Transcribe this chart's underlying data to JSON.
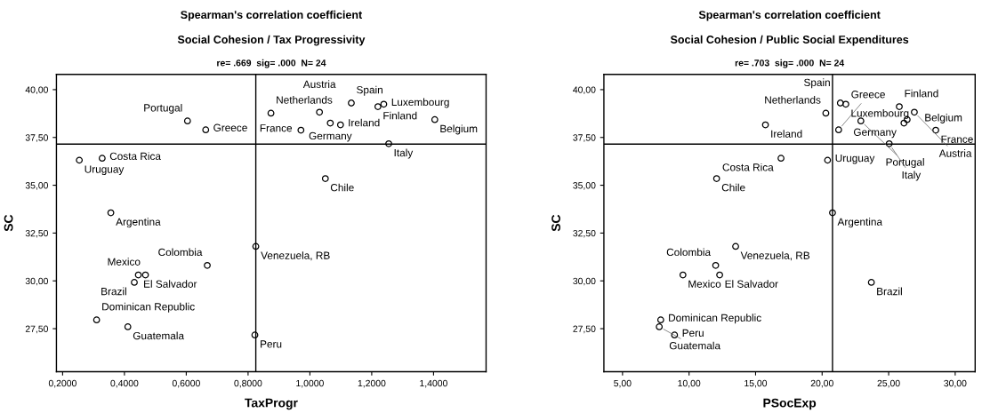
{
  "chart_data": [
    {
      "type": "scatter",
      "title": "Spearman's correlation coefficient",
      "subtitle": "Social Cohesion / Tax Progressivity",
      "xlabel": "TaxProgr",
      "ylabel": "SC",
      "marker": "circle",
      "grid": false,
      "legend": false,
      "annotations": [
        "re= .669  sig= .000  N= 24",
        {
          "text": "Uruguay",
          "x": 0.254,
          "y": 36.31
        },
        {
          "text": "Costa Rica",
          "x": 0.328,
          "y": 36.41
        },
        {
          "text": "Argentina",
          "x": 0.356,
          "y": 33.56
        },
        {
          "text": "Portugal",
          "x": 0.604,
          "y": 38.36
        },
        {
          "text": "Greece",
          "x": 0.663,
          "y": 37.9
        },
        {
          "text": "Netherlands",
          "x": 0.874,
          "y": 38.77
        },
        {
          "text": "France",
          "x": 0.971,
          "y": 37.88
        },
        {
          "text": "Austria",
          "x": 1.031,
          "y": 38.82
        },
        {
          "text": "Germany",
          "x": 1.066,
          "y": 38.25
        },
        {
          "text": "Ireland",
          "x": 1.099,
          "y": 38.16
        },
        {
          "text": "Spain",
          "x": 1.134,
          "y": 39.3
        },
        {
          "text": "Finland",
          "x": 1.22,
          "y": 39.11
        },
        {
          "text": "Luxembourg",
          "x": 1.239,
          "y": 39.24
        },
        {
          "text": "Italy",
          "x": 1.255,
          "y": 37.17
        },
        {
          "text": "Belgium",
          "x": 1.404,
          "y": 38.43
        },
        {
          "text": "Chile",
          "x": 1.05,
          "y": 35.35
        },
        {
          "text": "Venezuela, RB",
          "x": 0.825,
          "y": 31.8
        },
        {
          "text": "El Salvador",
          "x": 0.445,
          "y": 30.31
        },
        {
          "text": "Mexico",
          "x": 0.468,
          "y": 30.31
        },
        {
          "text": "Brazil",
          "x": 0.432,
          "y": 29.92
        },
        {
          "text": "Colombia",
          "x": 0.668,
          "y": 30.81
        },
        {
          "text": "Dominican Republic",
          "x": 0.31,
          "y": 27.96
        },
        {
          "text": "Guatemala",
          "x": 0.411,
          "y": 27.6
        },
        {
          "text": "Peru",
          "x": 0.822,
          "y": 27.17
        }
      ],
      "series": [
        {
          "color": "#000000",
          "x": [
            0.254,
            0.328,
            0.356,
            0.604,
            0.663,
            0.874,
            0.971,
            1.031,
            1.066,
            1.099,
            1.134,
            1.22,
            1.239,
            1.255,
            1.404,
            1.05,
            0.825,
            0.445,
            0.468,
            0.432,
            0.668,
            0.31,
            0.411,
            0.822
          ],
          "values": [
            36.31,
            36.41,
            33.56,
            38.36,
            37.9,
            38.77,
            37.88,
            38.82,
            38.25,
            38.16,
            39.3,
            39.11,
            39.24,
            37.17,
            38.43,
            35.35,
            31.8,
            30.31,
            30.31,
            29.92,
            30.81,
            27.96,
            27.6,
            27.17
          ]
        }
      ],
      "ref_lines": [
        {
          "axis": "x",
          "value": 0.825,
          "color": "#000000"
        },
        {
          "axis": "y",
          "value": 37.15,
          "color": "#000000"
        }
      ],
      "xlim": [
        0.18,
        1.57
      ],
      "ylim": [
        25.25,
        40.8
      ],
      "xticks": [
        {
          "value": 0.2,
          "label": "0,2000"
        },
        {
          "value": 0.4,
          "label": "0,4000"
        },
        {
          "value": 0.6,
          "label": "0,6000"
        },
        {
          "value": 0.8,
          "label": "0,8000"
        },
        {
          "value": 1.0,
          "label": "1,0000"
        },
        {
          "value": 1.2,
          "label": "1,2000"
        },
        {
          "value": 1.4,
          "label": "1,4000"
        }
      ],
      "yticks": [
        {
          "value": 27.5,
          "label": "27,50"
        },
        {
          "value": 30,
          "label": "30,00"
        },
        {
          "value": 32.5,
          "label": "32,50"
        },
        {
          "value": 35,
          "label": "35,00"
        },
        {
          "value": 37.5,
          "label": "37,50"
        },
        {
          "value": 40,
          "label": "40,00"
        }
      ]
    },
    {
      "type": "scatter",
      "title": "Spearman's correlation coefficient",
      "subtitle": "Social Cohesion / Public Social Expenditures",
      "xlabel": "PSocExp",
      "ylabel": "SC",
      "marker": "circle",
      "grid": false,
      "legend": false,
      "annotations": [
        "re= .703  sig= .000  N= 24",
        {
          "text": "Ireland",
          "x": 15.74,
          "y": 38.16
        },
        {
          "text": "Costa Rica",
          "x": 16.91,
          "y": 36.41
        },
        {
          "text": "Chile",
          "x": 12.07,
          "y": 35.35
        },
        {
          "text": "Netherlands",
          "x": 20.28,
          "y": 38.77
        },
        {
          "text": "Uruguay",
          "x": 20.41,
          "y": 36.31
        },
        {
          "text": "Argentina",
          "x": 20.78,
          "y": 33.56
        },
        {
          "text": "Greece",
          "x": 21.24,
          "y": 37.9
        },
        {
          "text": "Spain",
          "x": 21.37,
          "y": 39.3
        },
        {
          "text": "Luxembourg",
          "x": 21.78,
          "y": 39.24
        },
        {
          "text": "Portugal",
          "x": 22.91,
          "y": 38.36
        },
        {
          "text": "Finland",
          "x": 25.8,
          "y": 39.11
        },
        {
          "text": "Germany",
          "x": 26.15,
          "y": 38.25
        },
        {
          "text": "Belgium",
          "x": 26.39,
          "y": 38.43
        },
        {
          "text": "Austria",
          "x": 26.93,
          "y": 38.82
        },
        {
          "text": "France",
          "x": 28.54,
          "y": 37.88
        },
        {
          "text": "Italy",
          "x": 25.04,
          "y": 37.17
        },
        {
          "text": "Venezuela, RB",
          "x": 13.5,
          "y": 31.8
        },
        {
          "text": "Colombia",
          "x": 12.0,
          "y": 30.81
        },
        {
          "text": "Mexico",
          "x": 9.54,
          "y": 30.31
        },
        {
          "text": "El Salvador",
          "x": 12.3,
          "y": 30.31
        },
        {
          "text": "Brazil",
          "x": 23.7,
          "y": 29.92
        },
        {
          "text": "Dominican Republic",
          "x": 7.87,
          "y": 27.96
        },
        {
          "text": "Guatemala",
          "x": 7.76,
          "y": 27.6
        },
        {
          "text": "Peru",
          "x": 8.91,
          "y": 27.17
        }
      ],
      "series": [
        {
          "color": "#000000",
          "x": [
            15.74,
            16.91,
            12.07,
            20.28,
            20.41,
            20.78,
            21.24,
            21.37,
            21.78,
            22.91,
            25.8,
            26.15,
            26.39,
            26.93,
            28.54,
            25.04,
            13.5,
            12.0,
            9.54,
            12.3,
            23.7,
            7.87,
            7.76,
            8.91
          ],
          "values": [
            38.16,
            36.41,
            35.35,
            38.77,
            36.31,
            33.56,
            37.9,
            39.3,
            39.24,
            38.36,
            39.11,
            38.25,
            38.43,
            38.82,
            37.88,
            37.17,
            31.8,
            30.81,
            30.31,
            30.31,
            29.92,
            27.96,
            27.6,
            27.17
          ]
        }
      ],
      "ref_lines": [
        {
          "axis": "x",
          "value": 20.78,
          "color": "#000000"
        },
        {
          "axis": "y",
          "value": 37.15,
          "color": "#000000"
        }
      ],
      "xlim": [
        3.6,
        31.5
      ],
      "ylim": [
        25.25,
        40.8
      ],
      "xticks": [
        {
          "value": 5,
          "label": "5,00"
        },
        {
          "value": 10,
          "label": "10,00"
        },
        {
          "value": 15,
          "label": "15,00"
        },
        {
          "value": 20,
          "label": "20,00"
        },
        {
          "value": 25,
          "label": "25,00"
        },
        {
          "value": 30,
          "label": "30,00"
        }
      ],
      "yticks": [
        {
          "value": 27.5,
          "label": "27,50"
        },
        {
          "value": 30,
          "label": "30,00"
        },
        {
          "value": 32.5,
          "label": "32,50"
        },
        {
          "value": 35,
          "label": "35,00"
        },
        {
          "value": 37.5,
          "label": "37,50"
        },
        {
          "value": 40,
          "label": "40,00"
        }
      ]
    }
  ]
}
